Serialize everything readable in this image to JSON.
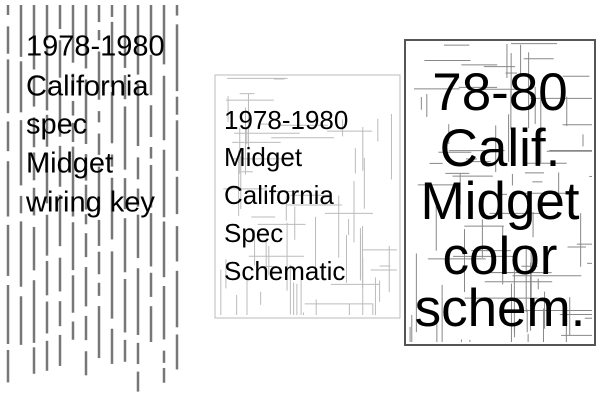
{
  "panels": [
    {
      "lines": [
        "1978-1980",
        "California",
        "spec",
        "Midget",
        "wiring key"
      ]
    },
    {
      "lines": [
        "1978-1980",
        "Midget",
        "California",
        "Spec",
        "Schematic"
      ]
    },
    {
      "lines": [
        "78-80",
        "Calif.",
        "Midget",
        "color",
        "schem."
      ]
    }
  ]
}
